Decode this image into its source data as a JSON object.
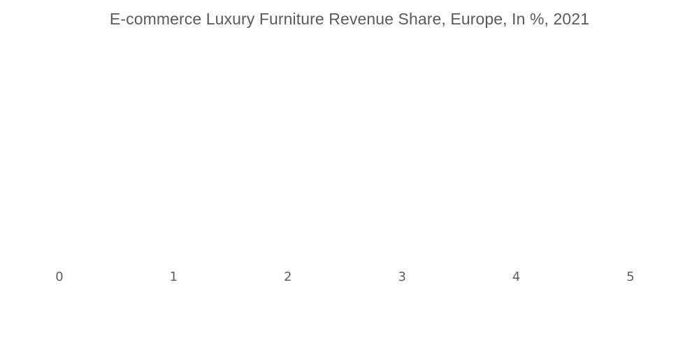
{
  "chart_data": {
    "type": "bar",
    "title": "E-commerce Luxury Furniture Revenue Share, Europe, In %, 2021",
    "categories": [],
    "values": [],
    "xlabel": "",
    "ylabel": "",
    "xlim": [
      0,
      5
    ],
    "x_ticks": [
      "0",
      "1",
      "2",
      "3",
      "4",
      "5"
    ],
    "grid": false,
    "colors": {
      "text": "#5a5a5a",
      "background": "#ffffff"
    }
  }
}
